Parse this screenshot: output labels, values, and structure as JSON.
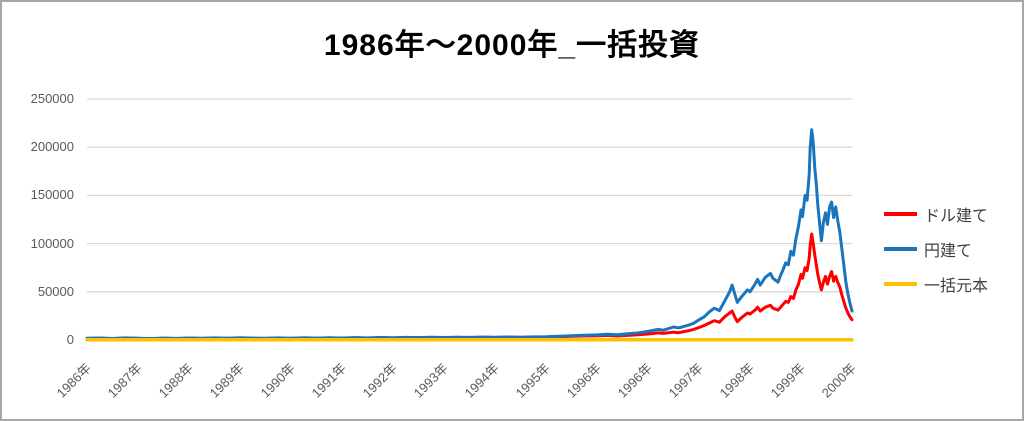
{
  "title": "1986年〜2000年_一括投資",
  "legend": {
    "items": [
      {
        "id": "usd",
        "label": "ドル建て",
        "color": "#ff0000"
      },
      {
        "id": "jpy",
        "label": "円建て",
        "color": "#1b75bc"
      },
      {
        "id": "principal",
        "label": "一括元本",
        "color": "#ffc000"
      }
    ]
  },
  "colors": {
    "gridline": "#d9d9d9",
    "tick_text": "#595959",
    "legend_text": "#404040",
    "frame": "#a6a6a6"
  },
  "chart_data": {
    "type": "line",
    "title": "1986年〜2000年_一括投資",
    "xlabel": "",
    "ylabel": "",
    "ylim": [
      0,
      250000
    ],
    "grid": "horizontal",
    "legend_position": "right",
    "y_ticks": [
      0,
      50000,
      100000,
      150000,
      200000,
      250000
    ],
    "y_tick_labels": [
      "0",
      "50000",
      "100000",
      "150000",
      "200000",
      "250000"
    ],
    "x_tick_labels": [
      "1986年",
      "1987年",
      "1988年",
      "1989年",
      "1990年",
      "1991年",
      "1992年",
      "1993年",
      "1994年",
      "1995年",
      "1996年",
      "1996年",
      "1997年",
      "1998年",
      "1999年",
      "2000年"
    ],
    "x_note": "x values below are in tick-index units, 0 = 1986年 tick, 15 = 2000年 tick",
    "series": [
      {
        "id": "usd",
        "name": "ドル建て",
        "color": "#ff0000",
        "x": [
          0,
          0.25,
          0.5,
          0.75,
          1,
          1.25,
          1.5,
          1.75,
          2,
          2.25,
          2.5,
          2.75,
          3,
          3.25,
          3.5,
          3.75,
          4,
          4.25,
          4.5,
          4.75,
          5,
          5.25,
          5.5,
          5.75,
          6,
          6.25,
          6.5,
          6.75,
          7,
          7.25,
          7.5,
          7.75,
          8,
          8.25,
          8.5,
          8.75,
          9,
          9.25,
          9.5,
          9.75,
          10,
          10.2,
          10.4,
          10.6,
          10.8,
          11,
          11.2,
          11.3,
          11.5,
          11.6,
          11.8,
          11.9,
          12,
          12.1,
          12.2,
          12.3,
          12.4,
          12.5,
          12.6,
          12.65,
          12.7,
          12.75,
          12.85,
          12.95,
          13,
          13.1,
          13.15,
          13.2,
          13.3,
          13.4,
          13.45,
          13.55,
          13.6,
          13.65,
          13.7,
          13.75,
          13.8,
          13.85,
          13.9,
          13.95,
          14,
          14.03,
          14.08,
          14.12,
          14.16,
          14.18,
          14.21,
          14.24,
          14.27,
          14.3,
          14.33,
          14.37,
          14.4,
          14.44,
          14.48,
          14.52,
          14.56,
          14.6,
          14.64,
          14.68,
          14.72,
          14.76,
          14.8,
          14.84,
          14.88,
          14.92,
          14.96,
          15
        ],
        "values": [
          1600,
          1900,
          1400,
          2000,
          1700,
          1300,
          1800,
          1500,
          1900,
          1600,
          2000,
          1700,
          2100,
          1800,
          1600,
          2000,
          1700,
          2100,
          1800,
          2200,
          1900,
          2300,
          2000,
          2400,
          2100,
          2500,
          2300,
          2600,
          2400,
          2700,
          2500,
          2800,
          2600,
          2900,
          2700,
          3000,
          3100,
          3400,
          3800,
          4100,
          4300,
          4800,
          4200,
          4800,
          5400,
          6200,
          7400,
          6800,
          8200,
          7600,
          9800,
          11000,
          13000,
          15000,
          17500,
          20000,
          18500,
          24000,
          28000,
          30000,
          24000,
          19000,
          24000,
          28000,
          27000,
          31000,
          34000,
          30000,
          34000,
          36000,
          33000,
          31000,
          34000,
          37000,
          40000,
          39000,
          45000,
          43000,
          52000,
          58000,
          68000,
          64000,
          75000,
          72000,
          85000,
          98000,
          110000,
          100000,
          88000,
          78000,
          68000,
          58000,
          52000,
          60000,
          66000,
          58000,
          66000,
          71000,
          61000,
          66000,
          60000,
          55000,
          47000,
          40000,
          33000,
          28000,
          24000,
          21000
        ]
      },
      {
        "id": "jpy",
        "name": "円建て",
        "color": "#1b75bc",
        "x": [
          0,
          0.25,
          0.5,
          0.75,
          1,
          1.25,
          1.5,
          1.75,
          2,
          2.25,
          2.5,
          2.75,
          3,
          3.25,
          3.5,
          3.75,
          4,
          4.25,
          4.5,
          4.75,
          5,
          5.25,
          5.5,
          5.75,
          6,
          6.25,
          6.5,
          6.75,
          7,
          7.25,
          7.5,
          7.75,
          8,
          8.25,
          8.5,
          8.75,
          9,
          9.25,
          9.5,
          9.75,
          10,
          10.2,
          10.4,
          10.6,
          10.8,
          11,
          11.2,
          11.3,
          11.5,
          11.6,
          11.8,
          11.9,
          12,
          12.1,
          12.2,
          12.3,
          12.4,
          12.5,
          12.6,
          12.65,
          12.7,
          12.75,
          12.85,
          12.95,
          13,
          13.1,
          13.15,
          13.2,
          13.3,
          13.4,
          13.45,
          13.55,
          13.6,
          13.65,
          13.7,
          13.75,
          13.8,
          13.85,
          13.9,
          13.95,
          14,
          14.03,
          14.08,
          14.12,
          14.16,
          14.18,
          14.21,
          14.24,
          14.27,
          14.3,
          14.33,
          14.37,
          14.4,
          14.44,
          14.48,
          14.52,
          14.56,
          14.6,
          14.64,
          14.68,
          14.72,
          14.76,
          14.8,
          14.84,
          14.88,
          14.92,
          14.96,
          15
        ],
        "values": [
          1800,
          2100,
          1600,
          2200,
          1900,
          1500,
          2000,
          1700,
          2100,
          1800,
          2200,
          1900,
          2300,
          2000,
          1800,
          2200,
          1900,
          2300,
          2000,
          2400,
          2100,
          2500,
          2200,
          2600,
          2300,
          2700,
          2500,
          2800,
          2600,
          2900,
          2700,
          3000,
          2800,
          3100,
          2900,
          3200,
          3400,
          3900,
          4500,
          5000,
          5300,
          6000,
          5400,
          6400,
          7300,
          9000,
          11000,
          10200,
          13500,
          12600,
          15500,
          17500,
          21000,
          24000,
          29000,
          33000,
          30500,
          40000,
          50000,
          57000,
          48000,
          39000,
          46000,
          52000,
          50000,
          58000,
          63000,
          57000,
          65000,
          69000,
          64000,
          60000,
          67000,
          73000,
          80000,
          78000,
          92000,
          88000,
          105000,
          118000,
          135000,
          128000,
          150000,
          145000,
          172000,
          200000,
          218000,
          205000,
          178000,
          162000,
          140000,
          118000,
          103000,
          122000,
          132000,
          120000,
          138000,
          143000,
          127000,
          138000,
          124000,
          112000,
          95000,
          78000,
          60000,
          48000,
          38000,
          30000
        ]
      },
      {
        "id": "principal",
        "name": "一括元本",
        "color": "#ffc000",
        "x": [
          0,
          15
        ],
        "values": [
          200,
          200
        ]
      }
    ]
  }
}
